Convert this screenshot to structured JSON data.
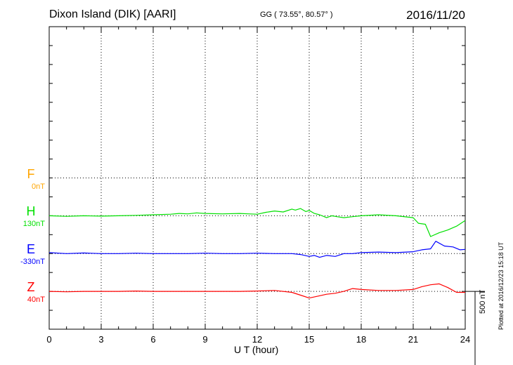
{
  "header": {
    "station": "Dixon Island (DIK)  [AARI]",
    "coords": "GG ( 73.55°,  80.57° )",
    "date": "2016/11/20"
  },
  "footer": {
    "plotted": "Plotted at 2016/12/23 15:18 UT",
    "scale_label": "500 nT"
  },
  "colors": {
    "F": "#ffa500",
    "H": "#00e000",
    "E": "#0000ff",
    "Z": "#ff0000"
  },
  "chart_data": {
    "type": "line",
    "title": "",
    "xlabel": "U T (hour)",
    "ylabel": "",
    "xlim": [
      0,
      24
    ],
    "xticks": [
      0,
      3,
      6,
      9,
      12,
      15,
      18,
      21,
      24
    ],
    "ylim_nT": [
      -800,
      800
    ],
    "scale_bar_nT": 500,
    "grid": true,
    "components": [
      {
        "name": "F",
        "baseline_label": "0nT",
        "baseline_nT": 0,
        "offset_nT": 0,
        "has_data": false
      },
      {
        "name": "H",
        "baseline_label": "130nT",
        "baseline_nT": 130,
        "offset_nT": -200,
        "x": [
          0,
          1,
          2,
          3,
          4,
          5,
          6,
          7,
          7.5,
          8,
          8.5,
          9,
          10,
          11,
          11.5,
          12,
          12.5,
          13,
          13.5,
          14,
          14.2,
          14.5,
          14.8,
          15,
          15.3,
          15.6,
          16,
          16.3,
          16.6,
          17,
          17.5,
          18,
          19,
          20,
          21,
          21.3,
          21.7,
          22,
          22.5,
          23,
          23.5,
          24
        ],
        "y": [
          0,
          -3,
          0,
          -2,
          0,
          2,
          5,
          8,
          12,
          10,
          15,
          12,
          10,
          12,
          10,
          8,
          18,
          25,
          20,
          35,
          30,
          38,
          22,
          28,
          12,
          5,
          -10,
          0,
          -5,
          -10,
          -5,
          0,
          5,
          0,
          -10,
          -40,
          -45,
          -110,
          -90,
          -75,
          -55,
          -25
        ]
      },
      {
        "name": "E",
        "baseline_label": "-330nT",
        "baseline_nT": -330,
        "offset_nT": -400,
        "x": [
          0,
          1,
          2,
          3,
          4,
          5,
          6,
          7,
          8,
          9,
          10,
          11,
          12,
          13,
          14,
          14.5,
          15,
          15.3,
          15.6,
          16,
          16.5,
          17,
          17.5,
          18,
          19,
          20,
          21,
          21.5,
          22,
          22.3,
          22.8,
          23.3,
          23.7,
          24
        ],
        "y": [
          5,
          0,
          3,
          0,
          0,
          2,
          0,
          0,
          0,
          2,
          0,
          0,
          2,
          0,
          0,
          -5,
          -15,
          -10,
          -20,
          -10,
          -15,
          0,
          0,
          5,
          8,
          5,
          10,
          20,
          25,
          65,
          40,
          35,
          20,
          22
        ]
      },
      {
        "name": "Z",
        "baseline_label": "40nT",
        "baseline_nT": 40,
        "offset_nT": -600,
        "x": [
          0,
          1,
          2,
          3,
          4,
          5,
          6,
          7,
          8,
          9,
          10,
          11,
          12,
          13,
          14,
          14.5,
          15,
          15.5,
          16,
          16.5,
          17,
          17.5,
          18,
          19,
          20,
          21,
          21.5,
          22,
          22.5,
          23,
          23.5,
          24
        ],
        "y": [
          0,
          -2,
          0,
          0,
          0,
          2,
          0,
          0,
          0,
          0,
          0,
          0,
          2,
          5,
          -5,
          -20,
          -35,
          -25,
          -15,
          -10,
          0,
          15,
          10,
          5,
          5,
          10,
          25,
          35,
          40,
          20,
          -5,
          -5
        ]
      }
    ]
  }
}
